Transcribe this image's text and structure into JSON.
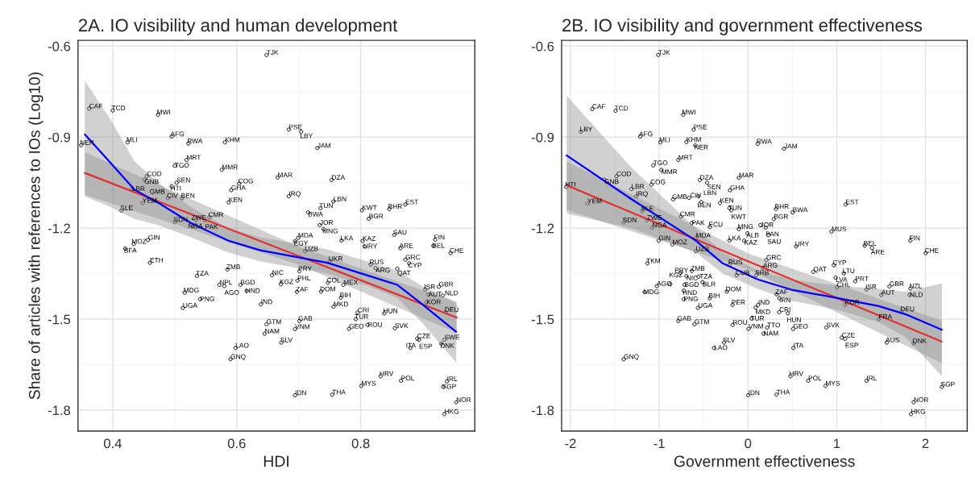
{
  "chart_data": [
    {
      "type": "scatter",
      "title": "2A. IO visibility and human development",
      "xlabel": "HDI",
      "ylabel": "Share of articles with references to IOs (Log10)",
      "xlim": [
        0.344,
        0.984
      ],
      "ylim": [
        -1.869,
        -0.581
      ],
      "xticks": [
        0.4,
        0.6,
        0.8
      ],
      "yticks": [
        {
          "value": -0.6,
          "label": "-0.6"
        },
        {
          "value": -0.9,
          "label": "-0.9"
        },
        {
          "value": -1.2,
          "label": "-1.2"
        },
        {
          "value": -1.5,
          "label": "-1.5"
        },
        {
          "value": -1.8,
          "label": "-1.8"
        }
      ],
      "grid": true,
      "legend": false,
      "series": [
        {
          "type": "scatter",
          "marker": "circle",
          "color": "#000000",
          "x": [
            0.648,
            0.362,
            0.4,
            0.473,
            0.684,
            0.704,
            0.495,
            0.581,
            0.522,
            0.424,
            0.349,
            0.73,
            0.519,
            0.5,
            0.576,
            0.666,
            0.753,
            0.455,
            0.451,
            0.604,
            0.503,
            0.495,
            0.591,
            0.431,
            0.684,
            0.489,
            0.512,
            0.448,
            0.465,
            0.587,
            0.756,
            0.735,
            0.715,
            0.414,
            0.802,
            0.846,
            0.872,
            0.813,
            0.556,
            0.5,
            0.534,
            0.549,
            0.529,
            0.734,
            0.74,
            0.854,
            0.769,
            0.803,
            0.92,
            0.699,
            0.694,
            0.457,
            0.434,
            0.42,
            0.806,
            0.917,
            0.864,
            0.945,
            0.46,
            0.71,
            0.75,
            0.872,
            0.878,
            0.816,
            0.824,
            0.859,
            0.701,
            0.585,
            0.536,
            0.657,
            0.671,
            0.698,
            0.572,
            0.58,
            0.606,
            0.616,
            0.697,
            0.747,
            0.772,
            0.736,
            0.768,
            0.756,
            0.516,
            0.541,
            0.513,
            0.639,
            0.904,
            0.926,
            0.909,
            0.932,
            0.906,
            0.937,
            0.795,
            0.792,
            0.838,
            0.701,
            0.648,
            0.694,
            0.781,
            0.811,
            0.645,
            0.855,
            0.672,
            0.891,
            0.894,
            0.88,
            0.935,
            0.93,
            0.598,
            0.59,
            0.832,
            0.865,
            0.801,
            0.939,
            0.933,
            0.694,
            0.754,
            0.954,
            0.935
          ],
          "values": [
            -0.629,
            -0.806,
            -0.812,
            -0.826,
            -0.875,
            -0.882,
            -0.898,
            -0.917,
            -0.921,
            -0.917,
            -0.926,
            -0.936,
            -0.975,
            -0.994,
            -1.007,
            -1.033,
            -1.041,
            -1.029,
            -1.04,
            -1.053,
            -1.05,
            -1.062,
            -1.075,
            -1.071,
            -1.095,
            -1.101,
            -1.101,
            -1.117,
            -1.11,
            -1.115,
            -1.112,
            -1.134,
            -1.148,
            -1.142,
            -1.141,
            -1.137,
            -1.122,
            -1.169,
            -1.164,
            -1.18,
            -1.173,
            -1.174,
            -1.194,
            -1.19,
            -1.203,
            -1.222,
            -1.241,
            -1.242,
            -1.238,
            -1.232,
            -1.243,
            -1.239,
            -1.252,
            -1.267,
            -1.26,
            -1.258,
            -1.266,
            -1.282,
            -1.314,
            -1.276,
            -1.309,
            -1.304,
            -1.316,
            -1.32,
            -1.332,
            -1.334,
            -1.342,
            -1.336,
            -1.357,
            -1.355,
            -1.385,
            -1.373,
            -1.387,
            -1.391,
            -1.387,
            -1.407,
            -1.41,
            -1.38,
            -1.387,
            -1.409,
            -1.429,
            -1.459,
            -1.413,
            -1.434,
            -1.463,
            -1.451,
            -1.402,
            -1.393,
            -1.419,
            -1.422,
            -1.444,
            -1.477,
            -1.478,
            -1.5,
            -1.481,
            -1.506,
            -1.517,
            -1.533,
            -1.532,
            -1.519,
            -1.548,
            -1.53,
            -1.577,
            -1.564,
            -1.568,
            -1.595,
            -1.568,
            -1.581,
            -1.595,
            -1.632,
            -1.688,
            -1.703,
            -1.72,
            -1.705,
            -1.723,
            -1.751,
            -1.749,
            -1.774,
            -1.813
          ],
          "value_labels": [
            "TJK",
            "CAF",
            "TCD",
            "MWI",
            "PSE",
            "LBY",
            "AFG",
            "KHM",
            "RWA",
            "MLI",
            "NER",
            "JAM",
            "MRT",
            "TGO",
            "MMR",
            "MAR",
            "DZA",
            "COD",
            "GNB",
            "COG",
            "SEN",
            "HTI",
            "GHA",
            "LBR",
            "IRQ",
            "CIV",
            "BEN",
            "YEM",
            "GMB",
            "KEN",
            "LBN",
            "TUN",
            "BWA",
            "SLE",
            "KWT",
            "BHR",
            "EST",
            "BGR",
            "CMR",
            "SDN",
            "ZWE",
            "PAK",
            "NGA",
            "JOR",
            "MNG",
            "SAU",
            "LKA",
            "KAZ",
            "FIN",
            "MDA",
            "EGY",
            "GIN",
            "MOZ",
            "BFA",
            "URY",
            "BEL",
            "ARE",
            "CHE",
            "ETH",
            "UZB",
            "UKR",
            "GRC",
            "CYP",
            "RUS",
            "ARG",
            "QAT",
            "PRY",
            "ZMB",
            "TZA",
            "NIC",
            "KGZ",
            "PHL",
            "NPL",
            "AGO",
            "BGD",
            "HND",
            "ZAF",
            "COL",
            "MEX",
            "DOM",
            "BIH",
            "MKD",
            "MDG",
            "PNG",
            "UGA",
            "IND",
            "ISR",
            "GBR",
            "AUT",
            "NLD",
            "KOR",
            "DEU",
            "CRI",
            "TUR",
            "HUN",
            "GAB",
            "GTM",
            "VNM",
            "GEO",
            "ROU",
            "NAM",
            "SVK",
            "SLV",
            "CZE",
            "ESP",
            "ITA",
            "SWE",
            "DNK",
            "LAO",
            "GNQ",
            "HRV",
            "POL",
            "MYS",
            "IRL",
            "SGP",
            "IDN",
            "THA",
            "NOR",
            "HKG"
          ]
        },
        {
          "type": "line",
          "color": "#e03030",
          "x": [
            0.355,
            0.699,
            0.955
          ],
          "values": [
            -1.018,
            -1.291,
            -1.495
          ],
          "lower": [
            -1.09,
            -1.32,
            -1.545
          ],
          "upper": [
            -0.95,
            -1.26,
            -1.445
          ]
        },
        {
          "type": "line",
          "color": "#0000ff",
          "x": [
            0.355,
            0.396,
            0.435,
            0.474,
            0.526,
            0.586,
            0.638,
            0.694,
            0.746,
            0.811,
            0.859,
            0.898,
            0.954
          ],
          "values": [
            -0.891,
            -0.984,
            -1.073,
            -1.117,
            -1.183,
            -1.241,
            -1.273,
            -1.294,
            -1.314,
            -1.356,
            -1.387,
            -1.449,
            -1.542
          ],
          "lower": [
            -1.095,
            -1.13,
            -1.17,
            -1.19,
            -1.23,
            -1.28,
            -1.31,
            -1.33,
            -1.35,
            -1.39,
            -1.43,
            -1.51,
            -1.643
          ],
          "upper": [
            -0.714,
            -0.84,
            -0.98,
            -1.05,
            -1.13,
            -1.2,
            -1.23,
            -1.25,
            -1.27,
            -1.31,
            -1.34,
            -1.39,
            -1.444
          ]
        }
      ]
    },
    {
      "type": "scatter",
      "title": "2B. IO visibility and government effectiveness",
      "xlabel": "Government effectiveness",
      "xlim": [
        -2.1,
        2.47
      ],
      "ylim": [
        -1.869,
        -0.581
      ],
      "xticks": [
        -2,
        -1,
        0,
        1,
        2
      ],
      "yticks": [
        {
          "value": -0.6,
          "label": "-0.6"
        },
        {
          "value": -0.9,
          "label": "-0.9"
        },
        {
          "value": -1.2,
          "label": "-1.2"
        },
        {
          "value": -1.5,
          "label": "-1.5"
        },
        {
          "value": -1.8,
          "label": "-1.8"
        }
      ],
      "grid": true,
      "legend": false,
      "series": [
        {
          "type": "scatter",
          "marker": "circle",
          "color": "#000000",
          "x": [
            -1.012,
            -1.755,
            -1.491,
            -0.73,
            -1.882,
            -0.612,
            -1.215,
            -0.988,
            -0.694,
            -0.594,
            0.109,
            0.406,
            -0.785,
            -1.067,
            -0.976,
            -0.103,
            -1.482,
            -1.618,
            -0.542,
            -0.461,
            -1.088,
            -2.048,
            -1.315,
            -0.203,
            -1.261,
            -1.809,
            -0.843,
            -0.664,
            -0.557,
            -0.527,
            -0.315,
            -0.209,
            -0.188,
            1.1,
            0.315,
            0.503,
            -1.194,
            0.291,
            -0.755,
            -1.4,
            -1.139,
            -1.079,
            -0.633,
            -0.43,
            -0.103,
            0.139,
            0.2,
            -0.006,
            0.23,
            0.942,
            -0.588,
            -0.209,
            -0.042,
            1.83,
            -1.006,
            -0.852,
            0.543,
            1.315,
            1.397,
            2.003,
            -0.588,
            -1.133,
            0.206,
            0.17,
            -0.209,
            0.967,
            0.736,
            1.079,
            0.988,
            1.209,
            1.003,
            1.336,
            1.594,
            1.503,
            1.83,
            1.821,
            1.094,
            1.73,
            1.473,
            1.564,
            1.867,
            -0.633,
            -0.764,
            -0.694,
            -0.557,
            -0.512,
            -0.715,
            -1.027,
            -0.876,
            -0.724,
            -1.164,
            -0.724,
            -0.43,
            -0.564,
            -0.173,
            -0.127,
            0.094,
            -0.239,
            0.321,
            0.352,
            0.115,
            0.085,
            0.352,
            0.449,
            0.042,
            -0.785,
            -0.603,
            -0.173,
            0.006,
            0.215,
            0.176,
            0.509,
            0.882,
            1.055,
            1.094,
            0.512,
            -0.27,
            -0.382,
            -1.4,
            0.479,
            0.679,
            0.873,
            1.336,
            2.185,
            0.003,
            0.321,
            1.867,
            1.836
          ],
          "values": [
            -0.629,
            -0.807,
            -0.813,
            -0.826,
            -0.882,
            -0.875,
            -0.898,
            -0.917,
            -0.916,
            -0.927,
            -0.922,
            -0.938,
            -0.975,
            -0.993,
            -1.008,
            -1.034,
            -1.029,
            -1.04,
            -1.041,
            -1.05,
            -1.056,
            -1.064,
            -1.071,
            -1.075,
            -1.095,
            -1.119,
            -1.105,
            -1.1,
            -1.095,
            -1.114,
            -1.117,
            -1.134,
            -1.141,
            -1.122,
            -1.137,
            -1.148,
            -1.143,
            -1.17,
            -1.162,
            -1.181,
            -1.174,
            -1.198,
            -1.183,
            -1.196,
            -1.203,
            -1.19,
            -1.198,
            -1.217,
            -1.223,
            -1.211,
            -1.232,
            -1.241,
            -1.241,
            -1.241,
            -1.241,
            -1.254,
            -1.26,
            -1.258,
            -1.265,
            -1.282,
            -1.276,
            -1.316,
            -1.305,
            -1.331,
            -1.32,
            -1.322,
            -1.344,
            -1.349,
            -1.363,
            -1.375,
            -1.395,
            -1.402,
            -1.392,
            -1.42,
            -1.399,
            -1.42,
            -1.453,
            -1.475,
            -1.5,
            -1.577,
            -1.58,
            -1.341,
            -1.347,
            -1.358,
            -1.36,
            -1.378,
            -1.387,
            -1.391,
            -1.385,
            -1.406,
            -1.411,
            -1.434,
            -1.431,
            -1.463,
            -1.453,
            -1.355,
            -1.355,
            -1.409,
            -1.418,
            -1.431,
            -1.453,
            -1.462,
            -1.477,
            -1.481,
            -1.498,
            -1.506,
            -1.517,
            -1.519,
            -1.532,
            -1.528,
            -1.548,
            -1.532,
            -1.528,
            -1.561,
            -1.565,
            -1.595,
            -1.577,
            -1.595,
            -1.632,
            -1.688,
            -1.703,
            -1.72,
            -1.703,
            -1.723,
            -1.751,
            -1.749,
            -1.774,
            -1.813
          ],
          "value_labels": [
            "TJK",
            "CAF",
            "TCD",
            "MWI",
            "LBY",
            "PSE",
            "AFG",
            "MLI",
            "KHM",
            "NER",
            "RWA",
            "JAM",
            "MRT",
            "TGO",
            "MMR",
            "MAR",
            "COD",
            "GNB",
            "DZA",
            "SEN",
            "COG",
            "HTI",
            "LBR",
            "GHA",
            "IRQ",
            "YEM",
            "GMB",
            "CIV",
            "BEN",
            "LBN",
            "KEN",
            "TUN",
            "KWT",
            "EST",
            "BHR",
            "BWA",
            "SLE",
            "BGR",
            "CMR",
            "SDN",
            "ZWE",
            "NGA",
            "PAK",
            "ECU",
            "MNG",
            "JOR",
            "PAN",
            "ALB",
            "SAU",
            "MUS",
            "MDA",
            "LKA",
            "KAZ",
            "FIN",
            "GIN",
            "MOZ",
            "URY",
            "BEL",
            "ARE",
            "CHE",
            "UZB",
            "TKM",
            "GRC",
            "ARG",
            "RUS",
            "CYP",
            "QAT",
            "LTU",
            "LVA",
            "PRT",
            "CHL",
            "ISR",
            "GBR",
            "AUT",
            "NZL",
            "NLD",
            "KOR",
            "DEU",
            "FRA",
            "AUS",
            "DNK",
            "ZMB",
            "PRY",
            "NIC",
            "TZA",
            "BLR",
            "BGD",
            "AGO",
            "KGZ",
            "HND",
            "MDG",
            "PNG",
            "BIH",
            "UGA",
            "PER",
            "CUB",
            "SRB",
            "DOM",
            "ZAF",
            "IRN",
            "IND",
            "MKD",
            "CRI",
            "HUN",
            "TUR",
            "GAB",
            "GTM",
            "ROU",
            "VNM",
            "TTO",
            "NAM",
            "GEO",
            "SVK",
            "CZE",
            "ESP",
            "ITA",
            "SLV",
            "LAO",
            "GNQ",
            "HRV",
            "POL",
            "MYS",
            "IRL",
            "SGP",
            "IDN",
            "THA",
            "NOR",
            "HKG"
          ]
        },
        {
          "type": "line",
          "color": "#e03030",
          "x": [
            -2.043,
            0.0,
            2.185
          ],
          "values": [
            -1.059,
            -1.309,
            -1.574
          ],
          "lower": [
            -1.14,
            -1.335,
            -1.645
          ],
          "upper": [
            -0.98,
            -1.283,
            -1.505
          ]
        },
        {
          "type": "line",
          "color": "#0000ff",
          "x": [
            -2.043,
            -1.315,
            -0.588,
            -0.285,
            0.109,
            0.503,
            1.018,
            1.473,
            1.776,
            2.185
          ],
          "values": [
            -0.96,
            -1.104,
            -1.241,
            -1.316,
            -1.369,
            -1.404,
            -1.431,
            -1.457,
            -1.484,
            -1.535
          ],
          "lower": [
            -1.152,
            -1.2,
            -1.28,
            -1.35,
            -1.4,
            -1.44,
            -1.47,
            -1.51,
            -1.56,
            -1.688
          ],
          "upper": [
            -0.763,
            -1.0,
            -1.2,
            -1.28,
            -1.34,
            -1.37,
            -1.39,
            -1.4,
            -1.41,
            -1.382
          ]
        }
      ]
    }
  ]
}
